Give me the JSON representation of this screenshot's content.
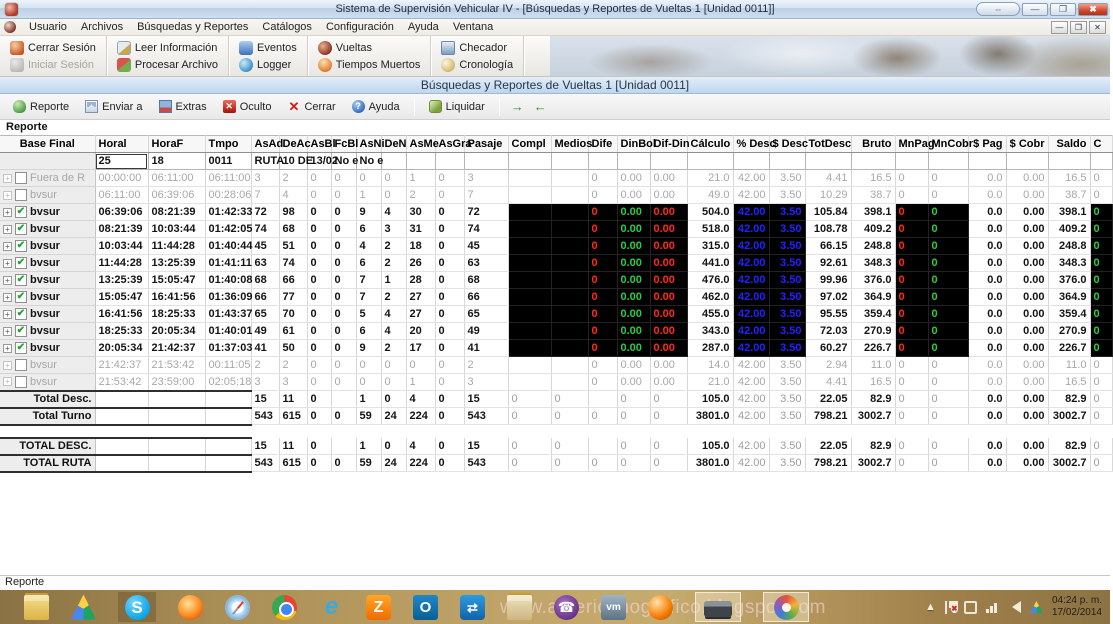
{
  "window": {
    "title": "Sistema de Supervisión Vehicular IV - [Búsquedas y Reportes de Vueltas 1 [Unidad 0011]]"
  },
  "menu": {
    "items": [
      "Usuario",
      "Archivos",
      "Búsquedas y Reportes",
      "Catálogos",
      "Configuración",
      "Ayuda",
      "Ventana"
    ]
  },
  "main_toolbar": {
    "groups": [
      {
        "buttons": [
          {
            "label": "Cerrar Sesión",
            "icon": "logout-user-icon",
            "disabled": false
          },
          {
            "label": "Iniciar Sesión",
            "icon": "login-user-icon",
            "disabled": true
          }
        ]
      },
      {
        "buttons": [
          {
            "label": "Leer Información",
            "icon": "read-info-icon",
            "disabled": false
          },
          {
            "label": "Procesar Archivo",
            "icon": "process-file-icon",
            "disabled": false
          }
        ]
      },
      {
        "buttons": [
          {
            "label": "Eventos",
            "icon": "events-icon",
            "disabled": false
          },
          {
            "label": "Logger",
            "icon": "logger-icon",
            "disabled": false
          }
        ]
      },
      {
        "buttons": [
          {
            "label": "Vueltas",
            "icon": "laps-icon",
            "disabled": false
          },
          {
            "label": "Tiempos Muertos",
            "icon": "dead-times-icon",
            "disabled": false
          }
        ]
      },
      {
        "buttons": [
          {
            "label": "Checador",
            "icon": "checker-icon",
            "disabled": false
          },
          {
            "label": "Cronología",
            "icon": "chronology-icon",
            "disabled": false
          }
        ]
      }
    ]
  },
  "child_window": {
    "title": "Búsquedas y Reportes de Vueltas 1 [Unidad 0011]"
  },
  "report_toolbar": {
    "buttons": [
      {
        "label": "Reporte",
        "icon": "report-icon"
      },
      {
        "label": "Enviar a",
        "icon": "send-to-icon"
      },
      {
        "label": "Extras",
        "icon": "extras-icon"
      },
      {
        "label": "Oculto",
        "icon": "hidden-icon"
      },
      {
        "label": "Cerrar",
        "icon": "close-icon"
      },
      {
        "label": "Ayuda",
        "icon": "help-icon"
      }
    ],
    "liquidar": {
      "label": "Liquidar",
      "icon": "liquidate-icon"
    }
  },
  "group_label": "Reporte",
  "status_bar": {
    "text": "Reporte"
  },
  "table": {
    "base_label": "Base Final",
    "columns": [
      {
        "name": "Horal",
        "width": 53
      },
      {
        "name": "HoraF",
        "width": 57
      },
      {
        "name": "Tmpo",
        "width": 46
      },
      {
        "name": "AsAd",
        "width": 28
      },
      {
        "name": "DeAc",
        "width": 28
      },
      {
        "name": "AsBl",
        "width": 24
      },
      {
        "name": "FcBl",
        "width": 25
      },
      {
        "name": "AsNi",
        "width": 25
      },
      {
        "name": "DeN",
        "width": 25
      },
      {
        "name": "AsMe",
        "width": 29
      },
      {
        "name": "AsGra",
        "width": 29
      },
      {
        "name": "Pasaje",
        "width": 44
      },
      {
        "name": "Compl",
        "width": 43
      },
      {
        "name": "Medios",
        "width": 37
      },
      {
        "name": "Dife",
        "width": 29
      },
      {
        "name": "DinBol",
        "width": 33
      },
      {
        "name": "Dif-Din",
        "width": 37
      },
      {
        "name": "Cálculo",
        "width": 46
      },
      {
        "name": "% Desc",
        "width": 36
      },
      {
        "name": "$ Desc",
        "width": 36
      },
      {
        "name": "TotDesc",
        "width": 46
      },
      {
        "name": "Bruto",
        "width": 44
      },
      {
        "name": "MnPag",
        "width": 33
      },
      {
        "name": "MnCobr",
        "width": 40
      },
      {
        "name": "$ Pag",
        "width": 38
      },
      {
        "name": "$ Cobr",
        "width": 42
      },
      {
        "name": "Saldo",
        "width": 42
      },
      {
        "name": "C",
        "width": 22
      }
    ],
    "filter": {
      "focus_index": 0,
      "values": [
        "25",
        "18",
        "0011",
        "RUTA",
        "10 DE",
        "13/02",
        "No e",
        "No e",
        "",
        "",
        "",
        "",
        "",
        "",
        "",
        "",
        "",
        "",
        "",
        "",
        "",
        "",
        "",
        "",
        "",
        "",
        "",
        ""
      ]
    },
    "rows": [
      {
        "kind": "data",
        "state": "off",
        "base": "Fuera de R",
        "cells": [
          "00:00:00",
          "06:11:00",
          "06:11:00",
          "3",
          "2",
          "0",
          "0",
          "0",
          "0",
          "1",
          "0",
          "3",
          "",
          "",
          "0",
          "0.00",
          "0.00",
          "21.0",
          "42.00",
          "3.50",
          "4.41",
          "16.5",
          "0",
          "0",
          "0.0",
          "0.00",
          "16.5",
          "0"
        ]
      },
      {
        "kind": "data",
        "state": "off",
        "base": "bvsur",
        "cells": [
          "06:11:00",
          "06:39:06",
          "00:28:06",
          "7",
          "4",
          "0",
          "0",
          "1",
          "0",
          "2",
          "0",
          "7",
          "",
          "",
          "0",
          "0.00",
          "0.00",
          "49.0",
          "42.00",
          "3.50",
          "10.29",
          "38.7",
          "0",
          "0",
          "0.0",
          "0.00",
          "38.7",
          "0"
        ]
      },
      {
        "kind": "data",
        "state": "on",
        "base": "bvsur",
        "cells": [
          "06:39:06",
          "08:21:39",
          "01:42:33",
          "72",
          "98",
          "0",
          "0",
          "9",
          "4",
          "30",
          "0",
          "72",
          "",
          "",
          "0",
          "0.00",
          "0.00",
          "504.0",
          "42.00",
          "3.50",
          "105.84",
          "398.1",
          "0",
          "0",
          "0.0",
          "0.00",
          "398.1",
          "0"
        ]
      },
      {
        "kind": "data",
        "state": "on",
        "base": "bvsur",
        "cells": [
          "08:21:39",
          "10:03:44",
          "01:42:05",
          "74",
          "68",
          "0",
          "0",
          "6",
          "3",
          "31",
          "0",
          "74",
          "",
          "",
          "0",
          "0.00",
          "0.00",
          "518.0",
          "42.00",
          "3.50",
          "108.78",
          "409.2",
          "0",
          "0",
          "0.0",
          "0.00",
          "409.2",
          "0"
        ]
      },
      {
        "kind": "data",
        "state": "on",
        "base": "bvsur",
        "cells": [
          "10:03:44",
          "11:44:28",
          "01:40:44",
          "45",
          "51",
          "0",
          "0",
          "4",
          "2",
          "18",
          "0",
          "45",
          "",
          "",
          "0",
          "0.00",
          "0.00",
          "315.0",
          "42.00",
          "3.50",
          "66.15",
          "248.8",
          "0",
          "0",
          "0.0",
          "0.00",
          "248.8",
          "0"
        ]
      },
      {
        "kind": "data",
        "state": "on",
        "base": "bvsur",
        "cells": [
          "11:44:28",
          "13:25:39",
          "01:41:11",
          "63",
          "74",
          "0",
          "0",
          "6",
          "2",
          "26",
          "0",
          "63",
          "",
          "",
          "0",
          "0.00",
          "0.00",
          "441.0",
          "42.00",
          "3.50",
          "92.61",
          "348.3",
          "0",
          "0",
          "0.0",
          "0.00",
          "348.3",
          "0"
        ]
      },
      {
        "kind": "data",
        "state": "on",
        "base": "bvsur",
        "cells": [
          "13:25:39",
          "15:05:47",
          "01:40:08",
          "68",
          "66",
          "0",
          "0",
          "7",
          "1",
          "28",
          "0",
          "68",
          "",
          "",
          "0",
          "0.00",
          "0.00",
          "476.0",
          "42.00",
          "3.50",
          "99.96",
          "376.0",
          "0",
          "0",
          "0.0",
          "0.00",
          "376.0",
          "0"
        ]
      },
      {
        "kind": "data",
        "state": "on",
        "base": "bvsur",
        "cells": [
          "15:05:47",
          "16:41:56",
          "01:36:09",
          "66",
          "77",
          "0",
          "0",
          "7",
          "2",
          "27",
          "0",
          "66",
          "",
          "",
          "0",
          "0.00",
          "0.00",
          "462.0",
          "42.00",
          "3.50",
          "97.02",
          "364.9",
          "0",
          "0",
          "0.0",
          "0.00",
          "364.9",
          "0"
        ]
      },
      {
        "kind": "data",
        "state": "on",
        "base": "bvsur",
        "cells": [
          "16:41:56",
          "18:25:33",
          "01:43:37",
          "65",
          "70",
          "0",
          "0",
          "5",
          "4",
          "27",
          "0",
          "65",
          "",
          "",
          "0",
          "0.00",
          "0.00",
          "455.0",
          "42.00",
          "3.50",
          "95.55",
          "359.4",
          "0",
          "0",
          "0.0",
          "0.00",
          "359.4",
          "0"
        ]
      },
      {
        "kind": "data",
        "state": "on",
        "base": "bvsur",
        "cells": [
          "18:25:33",
          "20:05:34",
          "01:40:01",
          "49",
          "61",
          "0",
          "0",
          "6",
          "4",
          "20",
          "0",
          "49",
          "",
          "",
          "0",
          "0.00",
          "0.00",
          "343.0",
          "42.00",
          "3.50",
          "72.03",
          "270.9",
          "0",
          "0",
          "0.0",
          "0.00",
          "270.9",
          "0"
        ]
      },
      {
        "kind": "data",
        "state": "on",
        "base": "bvsur",
        "cells": [
          "20:05:34",
          "21:42:37",
          "01:37:03",
          "41",
          "50",
          "0",
          "0",
          "9",
          "2",
          "17",
          "0",
          "41",
          "",
          "",
          "0",
          "0.00",
          "0.00",
          "287.0",
          "42.00",
          "3.50",
          "60.27",
          "226.7",
          "0",
          "0",
          "0.0",
          "0.00",
          "226.7",
          "0"
        ]
      },
      {
        "kind": "data",
        "state": "off",
        "base": "bvsur",
        "cells": [
          "21:42:37",
          "21:53:42",
          "00:11:05",
          "2",
          "2",
          "0",
          "0",
          "0",
          "0",
          "0",
          "0",
          "2",
          "",
          "",
          "0",
          "0.00",
          "0.00",
          "14.0",
          "42.00",
          "3.50",
          "2.94",
          "11.0",
          "0",
          "0",
          "0.0",
          "0.00",
          "11.0",
          "0"
        ]
      },
      {
        "kind": "data",
        "state": "off",
        "base": "bvsur",
        "cells": [
          "21:53:42",
          "23:59:00",
          "02:05:18",
          "3",
          "3",
          "0",
          "0",
          "0",
          "0",
          "1",
          "0",
          "3",
          "",
          "",
          "0",
          "0.00",
          "0.00",
          "21.0",
          "42.00",
          "3.50",
          "4.41",
          "16.5",
          "0",
          "0",
          "0.0",
          "0.00",
          "16.5",
          "0"
        ]
      },
      {
        "kind": "subtotal",
        "base": "Total Desc.",
        "cells": [
          "",
          "",
          "",
          "15",
          "11",
          "0",
          "",
          "1",
          "0",
          "4",
          "0",
          "15",
          "0",
          "0",
          "",
          "0",
          "0",
          "105.0",
          "42.00",
          "3.50",
          "22.05",
          "82.9",
          "0",
          "0",
          "0.0",
          "0.00",
          "82.9",
          "0"
        ]
      },
      {
        "kind": "subtotal",
        "base": "Total Turno",
        "cells": [
          "",
          "",
          "",
          "543",
          "615",
          "0",
          "0",
          "59",
          "24",
          "224",
          "0",
          "543",
          "0",
          "0",
          "0",
          "0",
          "0",
          "3801.0",
          "42.00",
          "3.50",
          "798.21",
          "3002.7",
          "0",
          "0",
          "0.0",
          "0.00",
          "3002.7",
          "0"
        ]
      },
      {
        "kind": "spacer"
      },
      {
        "kind": "grand",
        "base": "TOTAL DESC.",
        "cells": [
          "",
          "",
          "",
          "15",
          "11",
          "0",
          "",
          "1",
          "0",
          "4",
          "0",
          "15",
          "0",
          "0",
          "",
          "0",
          "0",
          "105.0",
          "42.00",
          "3.50",
          "22.05",
          "82.9",
          "0",
          "0",
          "0.0",
          "0.00",
          "82.9",
          "0"
        ]
      },
      {
        "kind": "grand",
        "base": "TOTAL RUTA",
        "cells": [
          "",
          "",
          "",
          "543",
          "615",
          "0",
          "0",
          "59",
          "24",
          "224",
          "0",
          "543",
          "0",
          "0",
          "0",
          "0",
          "0",
          "3801.0",
          "42.00",
          "3.50",
          "798.21",
          "3002.7",
          "0",
          "0",
          "0.0",
          "0.00",
          "3002.7",
          "0"
        ]
      }
    ]
  },
  "taskbar": {
    "watermark": "www.americanografico.blogspot.com",
    "icons": [
      {
        "name": "documents-folder"
      },
      {
        "name": "google-drive"
      },
      {
        "name": "skype",
        "pressed": true
      },
      {
        "name": "firefox"
      },
      {
        "name": "safari"
      },
      {
        "name": "chrome"
      },
      {
        "name": "internet-explorer"
      },
      {
        "name": "zimbra"
      },
      {
        "name": "outlook"
      },
      {
        "name": "teamviewer"
      },
      {
        "name": "file-explorer"
      },
      {
        "name": "viber"
      },
      {
        "name": "vmware"
      },
      {
        "name": "agent-ball"
      },
      {
        "name": "vehicular-app",
        "active": true
      },
      {
        "name": "paint",
        "active": true
      }
    ],
    "tray": [
      {
        "name": "tray-thumbnail"
      },
      {
        "name": "tray-expand"
      },
      {
        "name": "tray-flag"
      },
      {
        "name": "tray-device"
      },
      {
        "name": "tray-network"
      },
      {
        "name": "tray-volume"
      },
      {
        "name": "tray-drive"
      }
    ],
    "clock": {
      "time": "04:24 p. m.",
      "date": "17/02/2014"
    }
  }
}
